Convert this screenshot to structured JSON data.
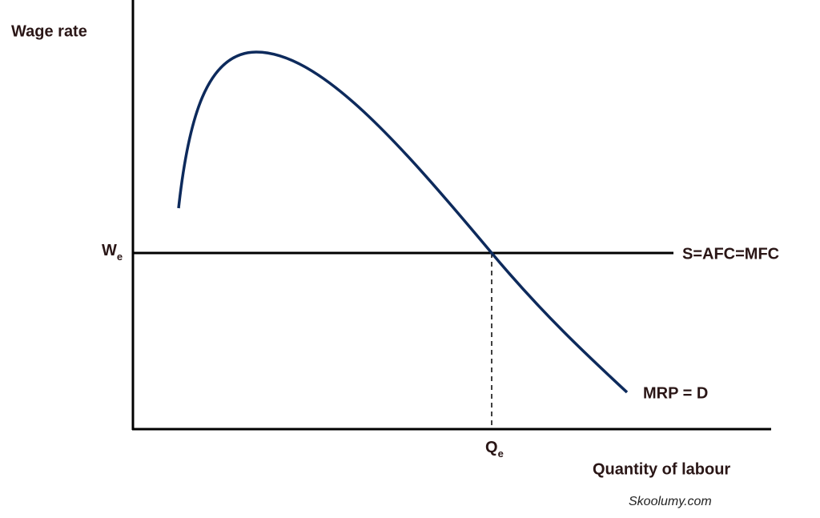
{
  "axes": {
    "y_label": "Wage rate",
    "x_label": "Quantity of labour"
  },
  "equilibrium": {
    "wage": {
      "symbol": "W",
      "subscript": "e"
    },
    "quantity": {
      "symbol": "Q",
      "subscript": "e"
    }
  },
  "curves": {
    "supply": "S=AFC=MFC",
    "demand": "MRP = D"
  },
  "watermark": "Skoolumy.com"
}
